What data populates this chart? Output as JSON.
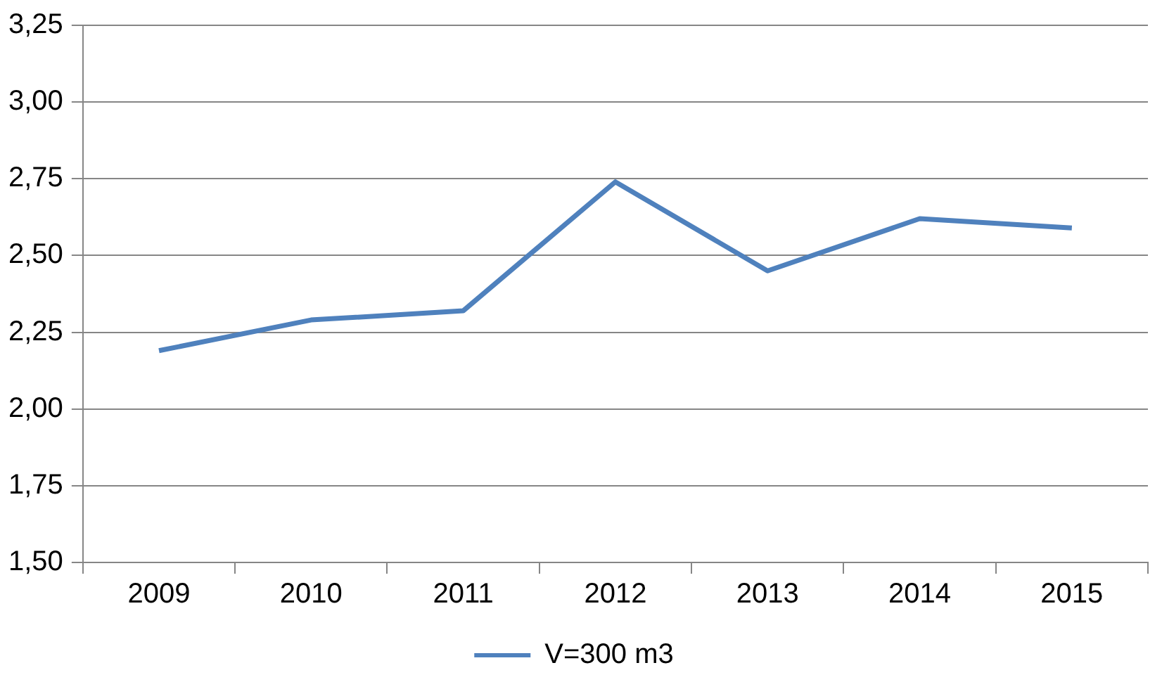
{
  "chart_data": {
    "type": "line",
    "categories": [
      "2009",
      "2010",
      "2011",
      "2012",
      "2013",
      "2014",
      "2015"
    ],
    "series": [
      {
        "name": "V=300 m3",
        "color": "#4f81bd",
        "values": [
          2.19,
          2.29,
          2.32,
          2.74,
          2.45,
          2.62,
          2.59
        ]
      }
    ],
    "ylim": [
      1.5,
      3.25
    ],
    "yticks": [
      {
        "value": 1.5,
        "label": "1,50"
      },
      {
        "value": 1.75,
        "label": "1,75"
      },
      {
        "value": 2,
        "label": "2,00"
      },
      {
        "value": 2.25,
        "label": "2,25"
      },
      {
        "value": 2.5,
        "label": "2,50"
      },
      {
        "value": 2.75,
        "label": "2,75"
      },
      {
        "value": 3,
        "label": "3,00"
      },
      {
        "value": 3.25,
        "label": "3,25"
      }
    ],
    "grid": "y",
    "legend": "bottom",
    "marker": "none",
    "line_style": "solid"
  }
}
